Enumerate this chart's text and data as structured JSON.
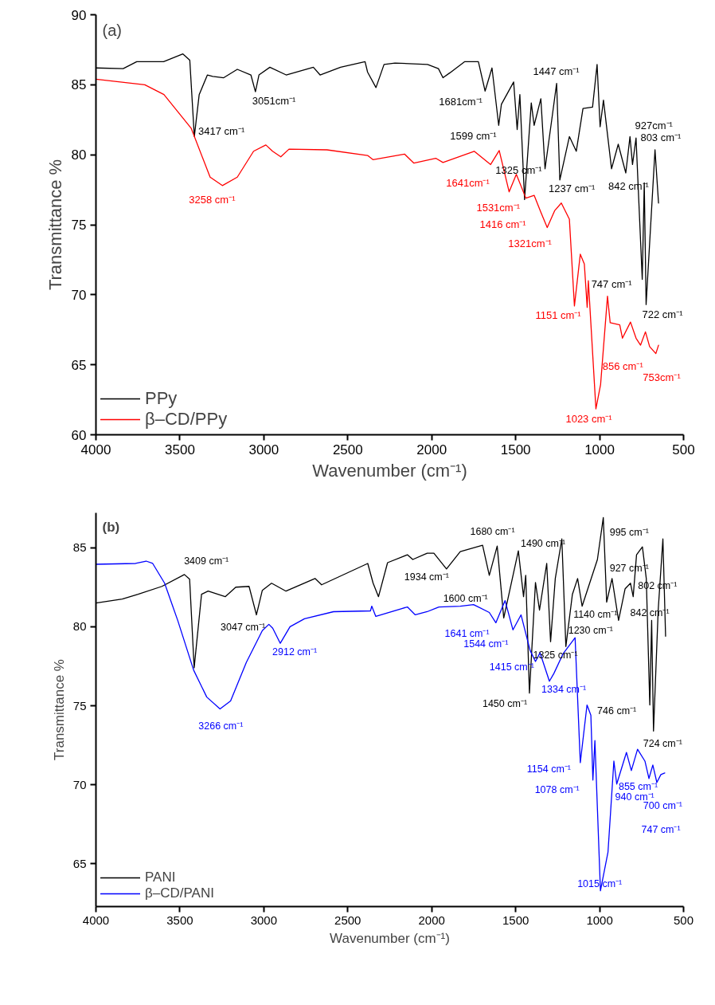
{
  "chart_data": [
    {
      "type": "line",
      "title": "(a)",
      "xlabel": "Wavenumber (cm⁻¹)",
      "ylabel": "Transmittance %",
      "xlim": [
        4000,
        500
      ],
      "ylim": [
        60,
        90
      ],
      "xticks": [
        4000,
        3500,
        3000,
        2500,
        2000,
        1500,
        1000,
        500
      ],
      "yticks": [
        60,
        65,
        70,
        75,
        80,
        85,
        90
      ],
      "legend": "bottom left",
      "grid": false,
      "series": [
        {
          "name": "PPy",
          "color": "#000000",
          "x": [
            4000,
            3838,
            3757,
            3597,
            3482,
            3441,
            3414,
            3385,
            3336,
            3304,
            3239,
            3158,
            3077,
            3050,
            3029,
            2964,
            2867,
            2705,
            2665,
            2543,
            2397,
            2382,
            2332,
            2284,
            2219,
            2025,
            1960,
            1933,
            1892,
            1803,
            1722,
            1682,
            1641,
            1601,
            1585,
            1512,
            1491,
            1475,
            1447,
            1407,
            1390,
            1350,
            1325,
            1285,
            1256,
            1237,
            1180,
            1139,
            1099,
            1042,
            1015,
            997,
            977,
            929,
            889,
            844,
            819,
            804,
            783,
            746,
            734,
            723,
            670,
            649
          ],
          "values": [
            86.2,
            86.15,
            86.65,
            86.65,
            87.2,
            86.75,
            81.3,
            84.3,
            85.7,
            85.6,
            85.5,
            86.1,
            85.7,
            84.5,
            85.7,
            86.25,
            85.7,
            86.25,
            85.7,
            86.25,
            86.65,
            85.9,
            84.8,
            86.45,
            86.55,
            86.45,
            86.15,
            85.5,
            85.85,
            86.65,
            86.65,
            84.55,
            86.2,
            82.1,
            83.6,
            85.2,
            81.8,
            84.3,
            76.8,
            83.7,
            82.1,
            84.0,
            79.0,
            82.5,
            85.1,
            78.2,
            81.3,
            80.25,
            83.3,
            83.4,
            86.45,
            82.0,
            83.9,
            79.0,
            80.75,
            78.7,
            81.3,
            79.3,
            81.2,
            71.1,
            78.0,
            69.3,
            80.35,
            76.55
          ]
        },
        {
          "name": "β–CD/PPy",
          "color": "#ff0000",
          "x": [
            4000,
            3709,
            3595,
            3433,
            3320,
            3247,
            3158,
            3061,
            2988,
            2948,
            2899,
            2850,
            2624,
            2382,
            2350,
            2162,
            2106,
            1976,
            1933,
            1747,
            1649,
            1598,
            1539,
            1496,
            1439,
            1390,
            1350,
            1312,
            1268,
            1228,
            1180,
            1150,
            1115,
            1091,
            1074,
            1067,
            1022,
            994,
            953,
            937,
            880,
            864,
            816,
            783,
            756,
            727,
            702,
            665,
            649
          ],
          "values": [
            85.4,
            85.0,
            84.3,
            81.9,
            78.4,
            77.8,
            78.4,
            80.25,
            80.7,
            80.25,
            79.85,
            80.4,
            80.35,
            79.95,
            79.65,
            80.05,
            79.4,
            79.75,
            79.45,
            80.25,
            79.3,
            80.3,
            77.35,
            78.6,
            76.9,
            77.1,
            75.9,
            74.8,
            76.0,
            76.55,
            75.4,
            69.2,
            72.9,
            72.2,
            69.1,
            71.0,
            61.85,
            63.6,
            69.9,
            68.0,
            67.85,
            66.9,
            68.05,
            66.9,
            66.4,
            67.35,
            66.3,
            65.8,
            66.4
          ]
        }
      ],
      "annotations": [
        {
          "text": "3417 cm⁻¹",
          "x": 3414,
          "y": 81.3
        },
        {
          "text": "3051cm⁻¹",
          "x": 3050,
          "y": 84.5
        },
        {
          "text": "3258 cm⁻¹",
          "x": 3247,
          "y": 77.8
        },
        {
          "text": "1681cm⁻¹",
          "x": 1682,
          "y": 84.55
        },
        "1447 cm⁻¹",
        {
          "text": "1599 cm⁻¹",
          "x": 1601,
          "y": 82.1
        },
        {
          "text": "1325 cm⁻¹",
          "x": 1325,
          "y": 79.0
        },
        {
          "text": "1237 cm⁻¹",
          "x": 1237,
          "y": 78.2
        },
        "927cm⁻¹",
        {
          "text": "803 cm⁻¹",
          "x": 804,
          "y": 79.3
        },
        {
          "text": "842 cm⁻¹",
          "x": 844,
          "y": 78.7
        },
        {
          "text": "1641cm⁻¹",
          "x": 1649,
          "y": 79.3
        },
        {
          "text": "1531cm⁻¹",
          "x": 1539,
          "y": 77.35
        },
        {
          "text": "1416 cm⁻¹",
          "x": 1439,
          "y": 76.9
        },
        {
          "text": "1321cm⁻¹",
          "x": 1312,
          "y": 74.8
        },
        {
          "text": "747 cm⁻¹",
          "x": 746,
          "y": 71.1
        },
        {
          "text": "722 cm⁻¹",
          "x": 723,
          "y": 69.3
        },
        {
          "text": "1151 cm⁻¹",
          "x": 1150,
          "y": 69.2
        },
        {
          "text": "753cm⁻¹",
          "x": 665,
          "y": 65.8
        },
        {
          "text": "856 cm⁻¹",
          "x": 864,
          "y": 66.9
        },
        {
          "text": "1023 cm⁻¹",
          "x": 1022,
          "y": 61.85
        }
      ]
    },
    {
      "type": "line",
      "title": "(b)",
      "xlabel": "Wavenumber (cm⁻¹)",
      "ylabel": "Transmittance %",
      "xlim": [
        4000,
        500
      ],
      "ylim": [
        62.3,
        87.2
      ],
      "xticks": [
        4000,
        3500,
        3000,
        2500,
        2000,
        1500,
        1000,
        500
      ],
      "yticks": [
        65,
        70,
        75,
        80,
        85
      ],
      "legend": "bottom left",
      "grid": false,
      "series": [
        {
          "name": "PANI",
          "color": "#000000",
          "x": [
            4000,
            3843,
            3749,
            3607,
            3473,
            3442,
            3415,
            3371,
            3332,
            3230,
            3167,
            3088,
            3044,
            3009,
            2954,
            2868,
            2695,
            2656,
            2381,
            2349,
            2317,
            2263,
            2145,
            2113,
            2027,
            1987,
            1912,
            1830,
            1697,
            1657,
            1610,
            1571,
            1484,
            1453,
            1440,
            1418,
            1382,
            1358,
            1315,
            1292,
            1264,
            1225,
            1201,
            1162,
            1131,
            1104,
            1013,
            978,
            958,
            926,
            887,
            848,
            816,
            800,
            780,
            745,
            722,
            701,
            690,
            679,
            651,
            623,
            607
          ],
          "values": [
            81.5,
            81.75,
            82.05,
            82.55,
            83.3,
            83.0,
            77.4,
            82.05,
            82.25,
            81.9,
            82.5,
            82.55,
            80.75,
            82.3,
            82.75,
            82.25,
            83.05,
            82.65,
            84.0,
            82.75,
            81.9,
            84.05,
            84.55,
            84.25,
            84.65,
            84.65,
            83.65,
            84.75,
            85.15,
            83.25,
            85.1,
            80.55,
            84.8,
            81.9,
            83.25,
            75.8,
            82.8,
            81.05,
            84.0,
            79.05,
            83.05,
            85.55,
            78.75,
            82.05,
            83.05,
            81.3,
            84.25,
            86.9,
            81.55,
            83.05,
            80.4,
            82.4,
            82.75,
            81.9,
            84.55,
            85.05,
            83.05,
            75.05,
            80.4,
            73.4,
            81.05,
            85.55,
            79.4
          ]
        },
        {
          "name": "β–CD/PANI",
          "color": "#0000ff",
          "x": [
            4000,
            3764,
            3701,
            3662,
            3591,
            3513,
            3418,
            3340,
            3261,
            3198,
            3104,
            3009,
            2970,
            2947,
            2902,
            2844,
            2758,
            2585,
            2365,
            2357,
            2333,
            2145,
            2098,
            2027,
            1957,
            1830,
            1751,
            1657,
            1618,
            1563,
            1516,
            1468,
            1414,
            1382,
            1355,
            1299,
            1272,
            1217,
            1146,
            1115,
            1075,
            1052,
            1040,
            1028,
            995,
            950,
            915,
            898,
            840,
            811,
            774,
            730,
            706,
            683,
            659,
            635,
            612
          ],
          "values": [
            83.95,
            84.0,
            84.15,
            84.0,
            82.75,
            80.4,
            77.25,
            75.55,
            74.8,
            75.3,
            77.75,
            79.75,
            80.15,
            79.9,
            78.95,
            80.0,
            80.5,
            80.95,
            81.0,
            81.3,
            80.65,
            81.25,
            80.75,
            80.95,
            81.25,
            81.3,
            81.4,
            80.9,
            80.25,
            81.65,
            79.8,
            80.75,
            78.5,
            77.8,
            78.35,
            76.55,
            77.05,
            78.3,
            79.3,
            71.4,
            75.05,
            74.4,
            70.3,
            72.8,
            63.3,
            65.75,
            71.5,
            70.05,
            72.05,
            70.9,
            72.25,
            71.5,
            70.4,
            71.25,
            70.15,
            70.65,
            70.75
          ]
        }
      ],
      "annotations": [
        {
          "text": "3409 cm⁻¹",
          "x": 3442,
          "y": 83.0
        },
        {
          "text": "3047 cm⁻¹",
          "x": 3044,
          "y": 80.75
        },
        {
          "text": "2912 cm⁻¹",
          "x": 2902,
          "y": 78.95
        },
        {
          "text": "3266 cm⁻¹",
          "x": 3261,
          "y": 74.8
        },
        {
          "text": "1934 cm⁻¹",
          "x": 1912,
          "y": 83.65
        },
        "1680 cm⁻¹",
        {
          "text": "1490 cm⁻¹",
          "x": 1484,
          "y": 84.8
        },
        {
          "text": "995 cm⁻¹",
          "x": 978,
          "y": 86.9
        },
        {
          "text": "927 cm⁻¹",
          "x": 926,
          "y": 83.05
        },
        {
          "text": "802 cm⁻¹",
          "x": 800,
          "y": 81.9
        },
        "842 cm⁻¹",
        {
          "text": "1140 cm⁻¹",
          "x": 1104,
          "y": 81.3
        },
        {
          "text": "1230 cm⁻¹",
          "x": 1201,
          "y": 78.75
        },
        {
          "text": "1325 cm⁻¹",
          "x": 1292,
          "y": 79.05
        },
        {
          "text": "1600 cm⁻¹",
          "x": 1571,
          "y": 80.55
        },
        {
          "text": "1450  cm⁻¹",
          "x": 1418,
          "y": 75.8
        },
        {
          "text": "746 cm⁻¹",
          "x": 701,
          "y": 75.05
        },
        {
          "text": "724 cm⁻¹",
          "x": 679,
          "y": 73.4
        },
        {
          "text": "1641  cm⁻¹",
          "x": 1657,
          "y": 80.9
        },
        {
          "text": "1544 cm⁻¹",
          "x": 1516,
          "y": 79.8
        },
        {
          "text": "1415 cm⁻¹",
          "x": 1414,
          "y": 78.5
        },
        {
          "text": "1334 cm⁻¹",
          "x": 1299,
          "y": 76.55
        },
        {
          "text": "1154 cm⁻¹",
          "x": 1115,
          "y": 71.4
        },
        {
          "text": "1078 cm⁻¹",
          "x": 1040,
          "y": 70.3
        },
        {
          "text": "855 cm⁻¹",
          "x": 811,
          "y": 70.9
        },
        {
          "text": "940 cm⁻¹",
          "x": 898,
          "y": 70.05
        },
        {
          "text": "700 cm⁻¹",
          "x": 659,
          "y": 70.15
        },
        "747 cm⁻¹",
        {
          "text": "1015 cm⁻¹",
          "x": 995,
          "y": 63.3
        }
      ]
    }
  ]
}
